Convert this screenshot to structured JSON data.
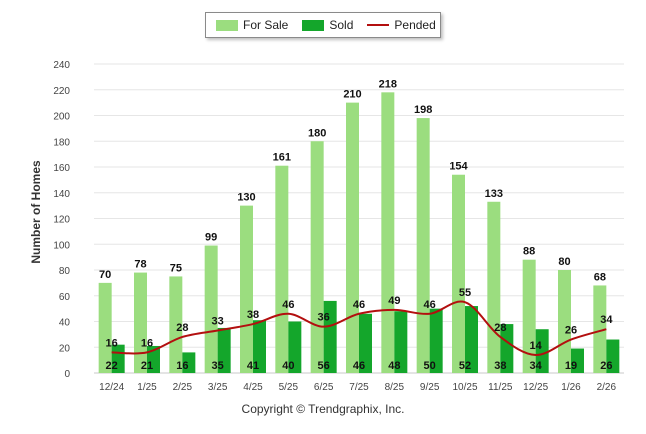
{
  "legend": {
    "for_sale_label": "For Sale",
    "sold_label": "Sold",
    "pended_label": "Pended"
  },
  "colors": {
    "for_sale": "#9bdd7f",
    "sold": "#14a62b",
    "pended": "#b30f0f",
    "grid": "#e6e6e6",
    "axis": "#c8c8c8"
  },
  "footer": {
    "copyright": "Copyright © Trendgraphix, Inc."
  },
  "chart_data": {
    "type": "bar",
    "title": "",
    "xlabel": "",
    "ylabel": "Number of Homes",
    "ylim": [
      0,
      240
    ],
    "yticks": [
      0,
      20,
      40,
      60,
      80,
      100,
      120,
      140,
      160,
      180,
      200,
      220,
      240
    ],
    "grid": true,
    "legend_position": "top-center",
    "categories": [
      "12/24",
      "1/25",
      "2/25",
      "3/25",
      "4/25",
      "5/25",
      "6/25",
      "7/25",
      "8/25",
      "9/25",
      "10/25",
      "11/25",
      "12/25",
      "1/26",
      "2/26"
    ],
    "series": [
      {
        "name": "For Sale",
        "type": "bar",
        "values": [
          70,
          78,
          75,
          99,
          130,
          161,
          180,
          210,
          218,
          198,
          154,
          133,
          88,
          80,
          68
        ]
      },
      {
        "name": "Sold",
        "type": "bar",
        "values": [
          22,
          21,
          16,
          35,
          41,
          40,
          56,
          46,
          48,
          50,
          52,
          38,
          34,
          19,
          26
        ]
      },
      {
        "name": "Pended",
        "type": "line",
        "values": [
          16,
          16,
          28,
          33,
          38,
          46,
          36,
          46,
          49,
          46,
          55,
          28,
          14,
          26,
          34
        ]
      }
    ]
  }
}
